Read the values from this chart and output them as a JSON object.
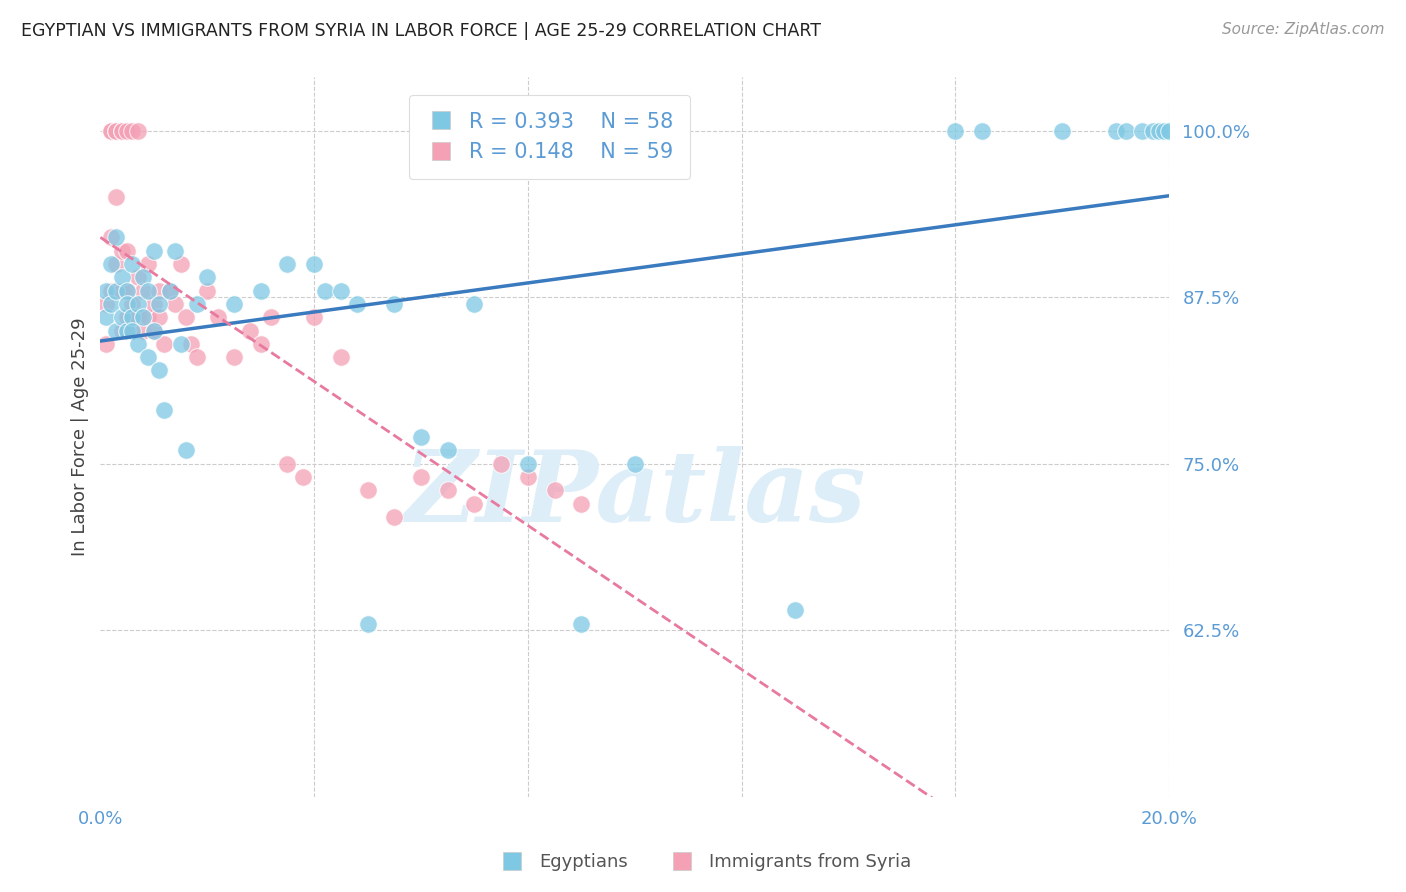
{
  "title": "EGYPTIAN VS IMMIGRANTS FROM SYRIA IN LABOR FORCE | AGE 25-29 CORRELATION CHART",
  "source": "Source: ZipAtlas.com",
  "ylabel": "In Labor Force | Age 25-29",
  "xlim": [
    0.0,
    0.2
  ],
  "ylim": [
    0.5,
    1.04
  ],
  "yticks": [
    0.625,
    0.75,
    0.875,
    1.0
  ],
  "ytick_labels": [
    "62.5%",
    "75.0%",
    "87.5%",
    "100.0%"
  ],
  "xtick_positions": [
    0.0,
    0.04,
    0.08,
    0.12,
    0.16,
    0.2
  ],
  "xtick_labels": [
    "0.0%",
    "",
    "",
    "",
    "",
    "20.0%"
  ],
  "blue_color": "#7ec8e3",
  "pink_color": "#f4a0b5",
  "blue_line_color": "#3a7bbf",
  "pink_line_color": "#e87a9f",
  "tick_color": "#5b9bd5",
  "watermark": "ZIPatlas",
  "watermark_color": "#ddeef8",
  "legend_r1": "R = 0.393",
  "legend_n1": "N = 58",
  "legend_r2": "R = 0.148",
  "legend_n2": "N = 59",
  "blue_x": [
    0.001,
    0.001,
    0.002,
    0.002,
    0.003,
    0.003,
    0.003,
    0.004,
    0.004,
    0.005,
    0.005,
    0.005,
    0.006,
    0.006,
    0.006,
    0.007,
    0.007,
    0.008,
    0.008,
    0.009,
    0.009,
    0.01,
    0.01,
    0.011,
    0.011,
    0.012,
    0.013,
    0.014,
    0.015,
    0.016,
    0.018,
    0.02,
    0.025,
    0.03,
    0.035,
    0.04,
    0.042,
    0.045,
    0.048,
    0.05,
    0.055,
    0.06,
    0.065,
    0.07,
    0.08,
    0.09,
    0.1,
    0.13,
    0.16,
    0.165,
    0.18,
    0.19,
    0.192,
    0.195,
    0.197,
    0.198,
    0.199,
    0.2
  ],
  "blue_y": [
    0.86,
    0.88,
    0.87,
    0.9,
    0.88,
    0.85,
    0.92,
    0.86,
    0.89,
    0.85,
    0.88,
    0.87,
    0.86,
    0.9,
    0.85,
    0.87,
    0.84,
    0.89,
    0.86,
    0.88,
    0.83,
    0.91,
    0.85,
    0.87,
    0.82,
    0.79,
    0.88,
    0.91,
    0.84,
    0.76,
    0.87,
    0.89,
    0.87,
    0.88,
    0.9,
    0.9,
    0.88,
    0.88,
    0.87,
    0.63,
    0.87,
    0.77,
    0.76,
    0.87,
    0.75,
    0.63,
    0.75,
    0.64,
    1.0,
    1.0,
    1.0,
    1.0,
    1.0,
    1.0,
    1.0,
    1.0,
    1.0,
    1.0
  ],
  "pink_x": [
    0.001,
    0.001,
    0.002,
    0.002,
    0.003,
    0.003,
    0.004,
    0.004,
    0.004,
    0.005,
    0.005,
    0.005,
    0.006,
    0.006,
    0.007,
    0.007,
    0.008,
    0.008,
    0.009,
    0.009,
    0.01,
    0.01,
    0.011,
    0.011,
    0.012,
    0.013,
    0.014,
    0.015,
    0.016,
    0.017,
    0.018,
    0.02,
    0.022,
    0.025,
    0.028,
    0.03,
    0.032,
    0.035,
    0.038,
    0.04,
    0.045,
    0.05,
    0.055,
    0.06,
    0.065,
    0.07,
    0.075,
    0.08,
    0.085,
    0.09,
    0.002,
    0.002,
    0.003,
    0.003,
    0.004,
    0.004,
    0.005,
    0.006,
    0.007
  ],
  "pink_y": [
    0.87,
    0.84,
    0.92,
    0.88,
    0.95,
    0.9,
    0.91,
    0.88,
    0.85,
    0.88,
    0.91,
    0.86,
    0.87,
    0.85,
    0.89,
    0.86,
    0.88,
    0.85,
    0.9,
    0.86,
    0.87,
    0.85,
    0.88,
    0.86,
    0.84,
    0.88,
    0.87,
    0.9,
    0.86,
    0.84,
    0.83,
    0.88,
    0.86,
    0.83,
    0.85,
    0.84,
    0.86,
    0.75,
    0.74,
    0.86,
    0.83,
    0.73,
    0.71,
    0.74,
    0.73,
    0.72,
    0.75,
    0.74,
    0.73,
    0.72,
    1.0,
    1.0,
    1.0,
    1.0,
    1.0,
    1.0,
    1.0,
    1.0,
    1.0
  ]
}
